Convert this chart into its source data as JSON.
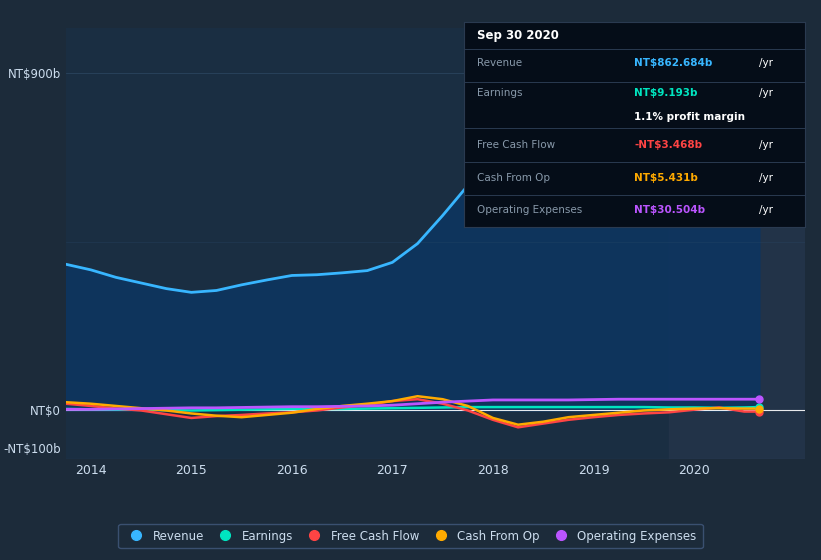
{
  "background_color": "#1c2b3a",
  "plot_bg_color": "#1a2e42",
  "title_box": {
    "date": "Sep 30 2020",
    "revenue_label": "Revenue",
    "revenue_value": "NT$862.684b",
    "revenue_color": "#38b6ff",
    "earnings_label": "Earnings",
    "earnings_value": "NT$9.193b",
    "earnings_color": "#00e5c0",
    "profit_margin": "1.1% profit margin",
    "fcf_label": "Free Cash Flow",
    "fcf_value": "-NT$3.468b",
    "fcf_color": "#ff4444",
    "cashop_label": "Cash From Op",
    "cashop_value": "NT$5.431b",
    "cashop_color": "#ffaa00",
    "opex_label": "Operating Expenses",
    "opex_value": "NT$30.504b",
    "opex_color": "#bb55ff"
  },
  "x_years": [
    2013.75,
    2014.0,
    2014.25,
    2014.5,
    2014.75,
    2015.0,
    2015.25,
    2015.5,
    2015.75,
    2016.0,
    2016.25,
    2016.5,
    2016.75,
    2017.0,
    2017.25,
    2017.5,
    2017.75,
    2018.0,
    2018.25,
    2018.5,
    2018.75,
    2019.0,
    2019.25,
    2019.5,
    2019.75,
    2020.0,
    2020.25,
    2020.5,
    2020.65
  ],
  "revenue": [
    390,
    375,
    355,
    340,
    325,
    315,
    320,
    335,
    348,
    360,
    362,
    367,
    373,
    395,
    445,
    520,
    600,
    670,
    730,
    768,
    810,
    845,
    862,
    855,
    838,
    818,
    800,
    838,
    862
  ],
  "earnings": [
    4,
    3,
    2,
    2,
    1,
    0,
    1,
    2,
    3,
    4,
    4,
    4,
    5,
    6,
    7,
    8,
    9,
    9,
    9,
    9,
    9,
    9,
    9,
    9,
    8,
    8,
    7,
    8,
    9
  ],
  "free_cash_flow": [
    18,
    12,
    5,
    0,
    -10,
    -20,
    -15,
    -12,
    -8,
    -5,
    0,
    8,
    15,
    25,
    30,
    18,
    0,
    -25,
    -45,
    -35,
    -25,
    -18,
    -12,
    -8,
    -5,
    2,
    8,
    -3,
    -3
  ],
  "cash_from_op": [
    22,
    18,
    12,
    6,
    0,
    -8,
    -14,
    -18,
    -12,
    -6,
    4,
    12,
    18,
    25,
    38,
    30,
    12,
    -20,
    -38,
    -30,
    -18,
    -12,
    -6,
    0,
    3,
    5,
    6,
    5,
    5
  ],
  "operating_expenses": [
    3,
    3,
    4,
    5,
    6,
    7,
    7,
    8,
    9,
    10,
    10,
    11,
    12,
    14,
    18,
    22,
    25,
    28,
    28,
    28,
    28,
    29,
    30,
    30,
    30,
    30,
    30,
    30,
    30
  ],
  "revenue_color": "#38b6ff",
  "earnings_color": "#00e5c0",
  "fcf_color": "#ff4444",
  "cashop_color": "#ffaa00",
  "opex_color": "#bb55ff",
  "ylabel_top": "NT$900b",
  "ylabel_mid": "NT$0",
  "ylabel_bot": "-NT$100b",
  "ylim": [
    -130,
    1020
  ],
  "xlim": [
    2013.75,
    2021.1
  ],
  "ytick_vals": [
    -100,
    0,
    900
  ],
  "xticks": [
    2014,
    2015,
    2016,
    2017,
    2018,
    2019,
    2020
  ],
  "legend_labels": [
    "Revenue",
    "Earnings",
    "Free Cash Flow",
    "Cash From Op",
    "Operating Expenses"
  ],
  "legend_colors": [
    "#38b6ff",
    "#00e5c0",
    "#ff4444",
    "#ffaa00",
    "#bb55ff"
  ],
  "highlight_x_start": 2019.75,
  "highlight_x_end": 2021.1,
  "highlight_color": "#223348"
}
